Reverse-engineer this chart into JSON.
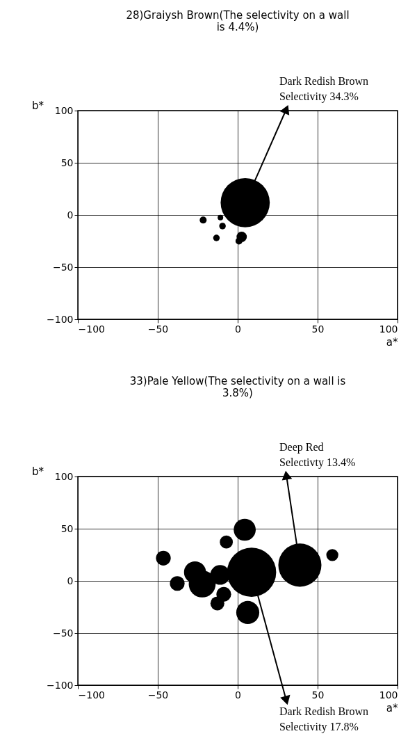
{
  "chart_data": [
    {
      "type": "bubble",
      "title": "28)Graiysh Brown(The selectivity on a wall is 4.4%)",
      "xlabel": "a*",
      "ylabel": "b*",
      "xlim": [
        -100,
        100
      ],
      "ylim": [
        -100,
        100
      ],
      "xticks": [
        -100,
        -50,
        0,
        50,
        100
      ],
      "yticks": [
        -100,
        -50,
        0,
        50,
        100
      ],
      "grid": true,
      "marker": "circle",
      "series": [
        {
          "color": "#000000",
          "x": [
            4.7,
            -21.6,
            -10.8,
            -9.5,
            -13.3,
            2.5,
            0.8
          ],
          "values": [
            11.8,
            -4.9,
            -2.5,
            -10.6,
            -22,
            -21,
            -25
          ],
          "sizes": [
            1,
            0.02,
            0.013,
            0.018,
            0.018,
            0.044,
            0.02
          ]
        }
      ],
      "annotations": [
        {
          "text": "Dark Redish Brown\nSelectivity 34.3%",
          "x": 4.7,
          "y": 11.8
        }
      ]
    },
    {
      "type": "bubble",
      "title": "33)Pale Yellow(The selectivity on a wall is 3.8%)",
      "xlabel": "a*",
      "ylabel": "b*",
      "xlim": [
        -100,
        100
      ],
      "ylim": [
        -100,
        100
      ],
      "xticks": [
        -100,
        -50,
        0,
        50,
        100
      ],
      "yticks": [
        -100,
        -50,
        0,
        50,
        100
      ],
      "grid": true,
      "marker": "circle",
      "series": [
        {
          "color": "#000000",
          "x": [
            8.7,
            38.9,
            59.2,
            4.4,
            -7.1,
            -46.5,
            -37.8,
            -26.7,
            -22.2,
            -12.7,
            -8.7,
            6.3,
            -11
          ],
          "values": [
            8.2,
            15.1,
            24.8,
            49,
            37.2,
            21.8,
            -2.5,
            8.2,
            -3,
            -21.6,
            -12.9,
            -30.3,
            5.7
          ],
          "sizes": [
            1,
            0.77,
            0.06,
            0.2,
            0.07,
            0.09,
            0.09,
            0.2,
            0.3,
            0.08,
            0.09,
            0.22,
            0.16
          ]
        }
      ],
      "annotations": [
        {
          "text": "Deep Red\nSelectivty 13.4%",
          "x": 38.9,
          "y": 15.1
        },
        {
          "text": "Dark Redish Brown\nSelectivity 17.8%",
          "x": 8.7,
          "y": 8.2
        }
      ]
    }
  ]
}
